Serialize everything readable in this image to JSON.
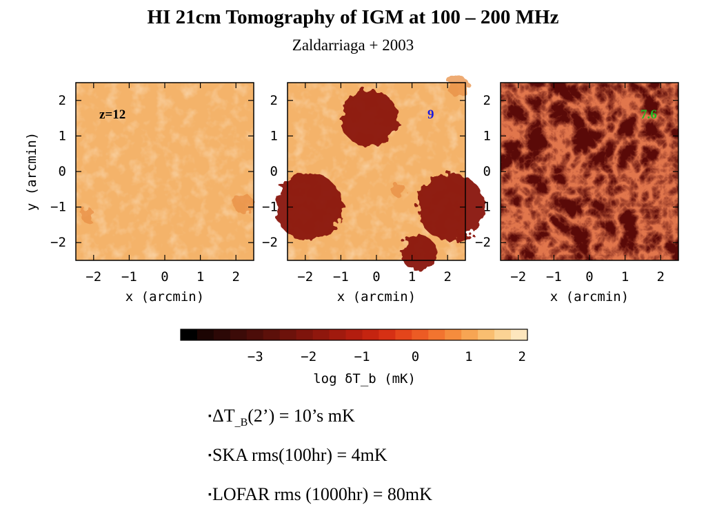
{
  "slide": {
    "title": "HI 21cm Tomography of IGM at 100 – 200 MHz",
    "subtitle": "Zaldarriaga + 2003"
  },
  "chart_data": {
    "type": "heatmap",
    "panels": [
      {
        "label": "z=12",
        "label_color": "#000000",
        "background": "#f4b36a",
        "regions": [
          {
            "x": 2.2,
            "y": -0.9,
            "r": 0.28
          },
          {
            "x": -2.2,
            "y": -1.2,
            "r": 0.2
          }
        ]
      },
      {
        "label": "9",
        "label_color": "#1a1ae0",
        "background": "#f4b36a",
        "regions": [
          {
            "x": -0.2,
            "y": 1.5,
            "r": 0.8
          },
          {
            "x": -1.9,
            "y": -1.0,
            "r": 0.95
          },
          {
            "x": 2.1,
            "y": -1.0,
            "r": 0.95
          },
          {
            "x": 1.2,
            "y": -2.3,
            "r": 0.5
          },
          {
            "x": 0.6,
            "y": -0.5,
            "r": 0.2
          },
          {
            "x": 2.3,
            "y": 2.4,
            "r": 0.3
          }
        ]
      },
      {
        "label": "7.6",
        "label_color": "#22bb22",
        "background": "#5a0a08",
        "regions": []
      }
    ],
    "x_axis": {
      "label": "x (arcmin)",
      "ticks": [
        "−2",
        "−1",
        "0",
        "1",
        "2"
      ],
      "range": [
        -2.5,
        2.5
      ]
    },
    "y_axis": {
      "label": "y (arcmin)",
      "ticks": [
        "2",
        "1",
        "0",
        "−1",
        "−2"
      ],
      "range": [
        -2.5,
        2.5
      ]
    },
    "colorbar": {
      "label": "log δT_b (mK)",
      "ticks": [
        "−3",
        "−2",
        "−1",
        "0",
        "1",
        "2"
      ],
      "tick_values": [
        -3,
        -2,
        -1,
        0,
        1,
        2
      ],
      "range": [
        -4.4,
        2.1
      ],
      "colors": [
        "#000000",
        "#1c0503",
        "#2c0806",
        "#3c0b08",
        "#4c0d09",
        "#5c100a",
        "#6d120b",
        "#7e140c",
        "#8f170d",
        "#a11a0e",
        "#b31d0f",
        "#c52410",
        "#d63014",
        "#e4451b",
        "#ec5b24",
        "#f2742f",
        "#f58c3d",
        "#f7a553",
        "#f9be70",
        "#fbd394",
        "#fde6bd"
      ]
    }
  },
  "bullets": [
    {
      "marker": "▪",
      "prefix": "ΔT",
      "sub": "_B",
      "suffix": "(2’) = 10’s mK"
    },
    {
      "marker": "▪",
      "text": "SKA rms(100hr) = 4mK"
    },
    {
      "marker": "▪",
      "text": "LOFAR rms (1000hr) = 80mK"
    }
  ]
}
